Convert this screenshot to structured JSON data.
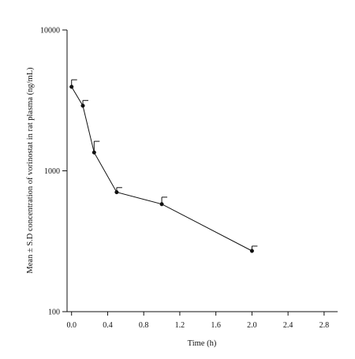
{
  "chart_data": {
    "type": "line",
    "title": "",
    "xlabel": "Time (h)",
    "ylabel": "Mean ± S.D concentration of vorinostat in rat plasma (ng/mL)",
    "y_scale": "log",
    "xlim": [
      -0.05,
      2.95
    ],
    "ylim": [
      100,
      10000
    ],
    "x_ticks": [
      0.0,
      0.4,
      0.8,
      1.2,
      1.6,
      2.0,
      2.4,
      2.8
    ],
    "x_tick_labels": [
      "0.0",
      "0.4",
      "0.8",
      "1.2",
      "1.6",
      "2.0",
      "2.4",
      "2.8"
    ],
    "y_ticks": [
      100,
      1000,
      10000
    ],
    "y_tick_labels": [
      "100",
      "1000",
      "10000"
    ],
    "grid": false,
    "legend": "none",
    "series": [
      {
        "x": [
          0.0,
          0.125,
          0.25,
          0.5,
          1.0,
          2.0
        ],
        "y": [
          3950,
          2900,
          1350,
          705,
          580,
          270
        ],
        "error_upper": [
          480,
          260,
          270,
          55,
          70,
          22
        ],
        "marker": "circle",
        "color": "#111111"
      }
    ]
  }
}
